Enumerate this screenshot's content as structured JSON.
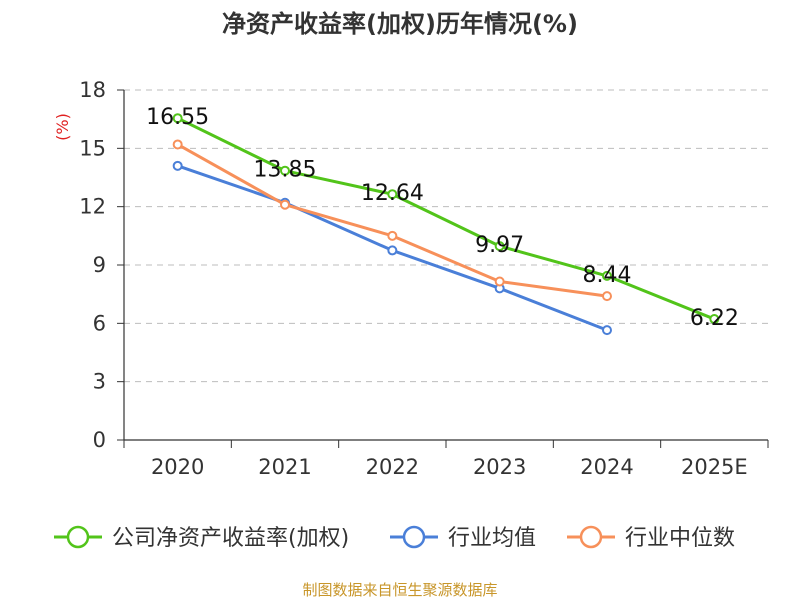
{
  "chart_data": {
    "type": "line",
    "title": "净资产收益率(加权)历年情况(%)",
    "ylabel": "(%)",
    "xlabel": "",
    "categories": [
      "2020",
      "2021",
      "2022",
      "2023",
      "2024",
      "2025E"
    ],
    "ylim": [
      0,
      18
    ],
    "yticks": [
      0,
      3,
      6,
      9,
      12,
      15,
      18
    ],
    "grid": true,
    "legend_position": "bottom",
    "series": [
      {
        "name": "公司净资产收益率(加权)",
        "color": "#52c41a",
        "values": [
          16.55,
          13.85,
          12.64,
          9.97,
          8.44,
          6.22
        ],
        "labels": [
          "16.55",
          "13.85",
          "12.64",
          "9.97",
          "8.44",
          "6.22"
        ]
      },
      {
        "name": "行业均值",
        "color": "#4a7fd8",
        "values": [
          14.1,
          12.2,
          9.75,
          7.8,
          5.65,
          null
        ]
      },
      {
        "name": "行业中位数",
        "color": "#f7905a",
        "values": [
          15.2,
          12.1,
          10.5,
          8.15,
          7.4,
          null
        ]
      }
    ],
    "source": "制图数据来自恒生聚源数据库"
  }
}
